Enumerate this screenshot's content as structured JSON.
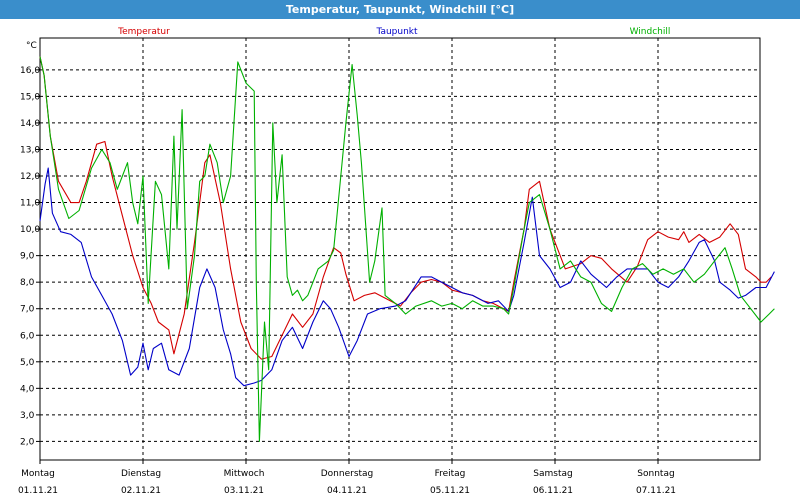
{
  "window": {
    "title": "Temperatur, Taupunkt, Windchill [°C]"
  },
  "chart_data": {
    "type": "line",
    "yunit": "°C",
    "ylim": [
      1.3,
      17.2
    ],
    "xlim": [
      0,
      7
    ],
    "grid": true,
    "legend_placement": "top",
    "yticks": [
      "2,0",
      "3,0",
      "4,0",
      "5,0",
      "6,0",
      "7,0",
      "8,0",
      "9,0",
      "10,0",
      "11,0",
      "12,0",
      "13,0",
      "14,0",
      "15,0",
      "16,0"
    ],
    "ytick_values": [
      2,
      3,
      4,
      5,
      6,
      7,
      8,
      9,
      10,
      11,
      12,
      13,
      14,
      15,
      16
    ],
    "days": [
      {
        "day": "Montag",
        "date": "01.11.21"
      },
      {
        "day": "Dienstag",
        "date": "02.11.21"
      },
      {
        "day": "Mittwoch",
        "date": "03.11.21"
      },
      {
        "day": "Donnerstag",
        "date": "04.11.21"
      },
      {
        "day": "Freitag",
        "date": "05.11.21"
      },
      {
        "day": "Samstag",
        "date": "06.11.21"
      },
      {
        "day": "Sonntag",
        "date": "07.11.21"
      }
    ],
    "series": [
      {
        "name": "Temperatur",
        "color": "#d40000",
        "points": [
          [
            0,
            16.5
          ],
          [
            0.04,
            15.8
          ],
          [
            0.1,
            13.5
          ],
          [
            0.18,
            11.8
          ],
          [
            0.3,
            11.0
          ],
          [
            0.38,
            11.0
          ],
          [
            0.45,
            11.8
          ],
          [
            0.55,
            13.2
          ],
          [
            0.63,
            13.3
          ],
          [
            0.7,
            12.0
          ],
          [
            0.8,
            10.5
          ],
          [
            0.9,
            9.0
          ],
          [
            1.0,
            7.8
          ],
          [
            1.08,
            7.2
          ],
          [
            1.15,
            6.5
          ],
          [
            1.25,
            6.2
          ],
          [
            1.3,
            5.3
          ],
          [
            1.4,
            6.8
          ],
          [
            1.5,
            9.5
          ],
          [
            1.6,
            12.5
          ],
          [
            1.65,
            12.8
          ],
          [
            1.75,
            11.0
          ],
          [
            1.85,
            8.5
          ],
          [
            1.95,
            6.5
          ],
          [
            2.05,
            5.5
          ],
          [
            2.15,
            5.1
          ],
          [
            2.25,
            5.2
          ],
          [
            2.35,
            6.0
          ],
          [
            2.45,
            6.8
          ],
          [
            2.55,
            6.3
          ],
          [
            2.65,
            6.8
          ],
          [
            2.75,
            8.2
          ],
          [
            2.85,
            9.3
          ],
          [
            2.92,
            9.1
          ],
          [
            2.97,
            8.3
          ],
          [
            3.05,
            7.3
          ],
          [
            3.15,
            7.5
          ],
          [
            3.25,
            7.6
          ],
          [
            3.35,
            7.4
          ],
          [
            3.5,
            7.1
          ],
          [
            3.6,
            7.6
          ],
          [
            3.7,
            8.0
          ],
          [
            3.8,
            8.1
          ],
          [
            3.9,
            8.0
          ],
          [
            4.0,
            7.7
          ],
          [
            4.2,
            7.5
          ],
          [
            4.3,
            7.3
          ],
          [
            4.4,
            7.2
          ],
          [
            4.5,
            7.0
          ],
          [
            4.55,
            6.9
          ],
          [
            4.6,
            8.0
          ],
          [
            4.7,
            10.0
          ],
          [
            4.75,
            11.5
          ],
          [
            4.85,
            11.8
          ],
          [
            4.95,
            10.0
          ],
          [
            5.1,
            8.5
          ],
          [
            5.25,
            8.7
          ],
          [
            5.35,
            9.0
          ],
          [
            5.45,
            8.9
          ],
          [
            5.55,
            8.5
          ],
          [
            5.7,
            8.0
          ],
          [
            5.8,
            8.6
          ],
          [
            5.9,
            9.6
          ],
          [
            6.0,
            9.9
          ],
          [
            6.1,
            9.7
          ],
          [
            6.2,
            9.6
          ],
          [
            6.25,
            9.9
          ],
          [
            6.3,
            9.5
          ],
          [
            6.4,
            9.8
          ],
          [
            6.5,
            9.5
          ],
          [
            6.6,
            9.7
          ],
          [
            6.7,
            10.2
          ],
          [
            6.78,
            9.8
          ],
          [
            6.85,
            8.5
          ],
          [
            6.95,
            8.2
          ],
          [
            7.0,
            8.0
          ],
          [
            7.05,
            8.0
          ],
          [
            7.1,
            8.2
          ]
        ]
      },
      {
        "name": "Taupunkt",
        "color": "#0000c8",
        "points": [
          [
            0,
            10.3
          ],
          [
            0.05,
            11.7
          ],
          [
            0.08,
            12.3
          ],
          [
            0.12,
            10.6
          ],
          [
            0.2,
            9.9
          ],
          [
            0.3,
            9.8
          ],
          [
            0.4,
            9.5
          ],
          [
            0.5,
            8.2
          ],
          [
            0.6,
            7.5
          ],
          [
            0.7,
            6.8
          ],
          [
            0.8,
            5.8
          ],
          [
            0.88,
            4.5
          ],
          [
            0.95,
            4.8
          ],
          [
            1.0,
            5.7
          ],
          [
            1.05,
            4.7
          ],
          [
            1.1,
            5.5
          ],
          [
            1.18,
            5.7
          ],
          [
            1.25,
            4.7
          ],
          [
            1.35,
            4.5
          ],
          [
            1.45,
            5.5
          ],
          [
            1.55,
            7.8
          ],
          [
            1.62,
            8.5
          ],
          [
            1.7,
            7.8
          ],
          [
            1.78,
            6.2
          ],
          [
            1.85,
            5.3
          ],
          [
            1.9,
            4.4
          ],
          [
            1.98,
            4.1
          ],
          [
            2.08,
            4.2
          ],
          [
            2.15,
            4.3
          ],
          [
            2.25,
            4.7
          ],
          [
            2.35,
            5.8
          ],
          [
            2.45,
            6.3
          ],
          [
            2.55,
            5.5
          ],
          [
            2.65,
            6.5
          ],
          [
            2.75,
            7.3
          ],
          [
            2.82,
            7.0
          ],
          [
            2.9,
            6.3
          ],
          [
            3.0,
            5.2
          ],
          [
            3.08,
            5.8
          ],
          [
            3.18,
            6.8
          ],
          [
            3.3,
            7.0
          ],
          [
            3.45,
            7.1
          ],
          [
            3.55,
            7.3
          ],
          [
            3.7,
            8.2
          ],
          [
            3.8,
            8.2
          ],
          [
            3.9,
            8.0
          ],
          [
            4.0,
            7.8
          ],
          [
            4.1,
            7.6
          ],
          [
            4.2,
            7.5
          ],
          [
            4.35,
            7.2
          ],
          [
            4.45,
            7.3
          ],
          [
            4.55,
            6.9
          ],
          [
            4.6,
            7.5
          ],
          [
            4.7,
            9.5
          ],
          [
            4.78,
            11.2
          ],
          [
            4.85,
            9.0
          ],
          [
            4.95,
            8.5
          ],
          [
            5.05,
            7.8
          ],
          [
            5.15,
            8.0
          ],
          [
            5.25,
            8.8
          ],
          [
            5.35,
            8.3
          ],
          [
            5.5,
            7.8
          ],
          [
            5.6,
            8.2
          ],
          [
            5.7,
            8.5
          ],
          [
            5.8,
            8.5
          ],
          [
            5.9,
            8.5
          ],
          [
            6.0,
            8.0
          ],
          [
            6.1,
            7.8
          ],
          [
            6.2,
            8.2
          ],
          [
            6.3,
            8.8
          ],
          [
            6.4,
            9.5
          ],
          [
            6.45,
            9.6
          ],
          [
            6.55,
            8.8
          ],
          [
            6.6,
            8.0
          ],
          [
            6.7,
            7.7
          ],
          [
            6.78,
            7.4
          ],
          [
            6.85,
            7.5
          ],
          [
            6.95,
            7.8
          ],
          [
            7.05,
            7.8
          ],
          [
            7.13,
            8.4
          ]
        ]
      },
      {
        "name": "Windchill",
        "color": "#00b000",
        "points": [
          [
            0,
            16.5
          ],
          [
            0.04,
            15.8
          ],
          [
            0.1,
            13.5
          ],
          [
            0.18,
            11.5
          ],
          [
            0.28,
            10.4
          ],
          [
            0.38,
            10.7
          ],
          [
            0.5,
            12.3
          ],
          [
            0.6,
            13.0
          ],
          [
            0.68,
            12.5
          ],
          [
            0.75,
            11.5
          ],
          [
            0.8,
            12.0
          ],
          [
            0.85,
            12.5
          ],
          [
            0.9,
            11.0
          ],
          [
            0.95,
            10.2
          ],
          [
            1.0,
            12.0
          ],
          [
            1.05,
            7.2
          ],
          [
            1.12,
            11.8
          ],
          [
            1.18,
            11.3
          ],
          [
            1.25,
            8.5
          ],
          [
            1.3,
            13.5
          ],
          [
            1.33,
            10.0
          ],
          [
            1.38,
            14.5
          ],
          [
            1.43,
            7.0
          ],
          [
            1.5,
            9.0
          ],
          [
            1.55,
            11.8
          ],
          [
            1.6,
            12.0
          ],
          [
            1.65,
            13.2
          ],
          [
            1.72,
            12.5
          ],
          [
            1.78,
            11.0
          ],
          [
            1.85,
            12.0
          ],
          [
            1.92,
            16.3
          ],
          [
            2.0,
            15.5
          ],
          [
            2.08,
            15.2
          ],
          [
            2.1,
            8.0
          ],
          [
            2.13,
            2.0
          ],
          [
            2.18,
            6.5
          ],
          [
            2.22,
            4.7
          ],
          [
            2.26,
            14.0
          ],
          [
            2.3,
            11.0
          ],
          [
            2.35,
            12.8
          ],
          [
            2.4,
            8.2
          ],
          [
            2.45,
            7.5
          ],
          [
            2.5,
            7.7
          ],
          [
            2.55,
            7.3
          ],
          [
            2.6,
            7.5
          ],
          [
            2.7,
            8.5
          ],
          [
            2.8,
            8.8
          ],
          [
            2.85,
            9.2
          ],
          [
            2.92,
            12.0
          ],
          [
            2.97,
            14.0
          ],
          [
            3.03,
            16.2
          ],
          [
            3.08,
            14.3
          ],
          [
            3.12,
            12.5
          ],
          [
            3.2,
            8.0
          ],
          [
            3.25,
            8.8
          ],
          [
            3.32,
            10.8
          ],
          [
            3.35,
            7.5
          ],
          [
            3.45,
            7.2
          ],
          [
            3.55,
            6.8
          ],
          [
            3.65,
            7.1
          ],
          [
            3.8,
            7.3
          ],
          [
            3.9,
            7.1
          ],
          [
            4.0,
            7.2
          ],
          [
            4.1,
            7.0
          ],
          [
            4.2,
            7.3
          ],
          [
            4.3,
            7.1
          ],
          [
            4.4,
            7.1
          ],
          [
            4.5,
            7.0
          ],
          [
            4.55,
            6.8
          ],
          [
            4.6,
            7.8
          ],
          [
            4.7,
            10.0
          ],
          [
            4.75,
            11.0
          ],
          [
            4.85,
            11.3
          ],
          [
            4.95,
            10.0
          ],
          [
            5.05,
            8.5
          ],
          [
            5.15,
            8.8
          ],
          [
            5.25,
            8.2
          ],
          [
            5.35,
            8.0
          ],
          [
            5.45,
            7.2
          ],
          [
            5.55,
            6.9
          ],
          [
            5.65,
            7.8
          ],
          [
            5.75,
            8.5
          ],
          [
            5.85,
            8.7
          ],
          [
            5.95,
            8.3
          ],
          [
            6.05,
            8.5
          ],
          [
            6.15,
            8.3
          ],
          [
            6.25,
            8.5
          ],
          [
            6.35,
            8.0
          ],
          [
            6.45,
            8.3
          ],
          [
            6.55,
            8.8
          ],
          [
            6.65,
            9.3
          ],
          [
            6.72,
            8.5
          ],
          [
            6.8,
            7.5
          ],
          [
            6.9,
            7.0
          ],
          [
            7.0,
            6.5
          ],
          [
            7.08,
            6.8
          ],
          [
            7.13,
            7.0
          ]
        ]
      }
    ]
  }
}
